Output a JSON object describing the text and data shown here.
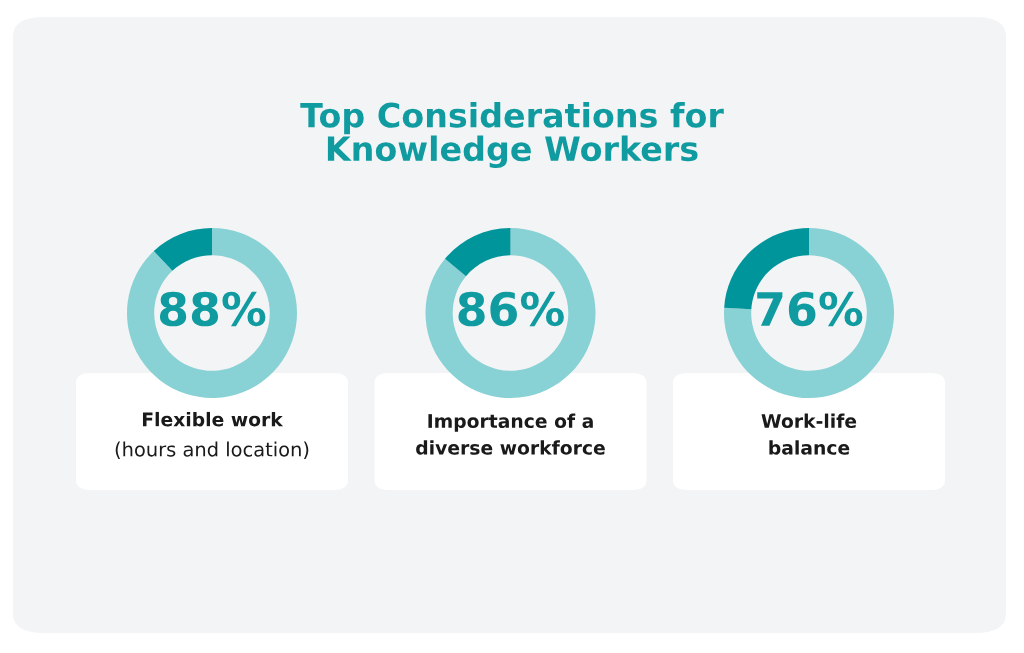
{
  "chart_data": [
    {
      "type": "other",
      "title": "Top Considerations for\nKnowledge Workers"
    },
    {
      "type": "donut",
      "xlabel": "Flexible work",
      "annotations": [
        "(hours and location)"
      ],
      "categories": [
        null,
        null
      ],
      "values": [
        88,
        12
      ],
      "colors": [
        "#88d1d4",
        "#00959a"
      ],
      "value_labels": [
        "88%",
        null
      ]
    },
    {
      "type": "donut",
      "xlabel": "Importance of a\ndiverse workforce",
      "categories": [
        null,
        null
      ],
      "values": [
        86,
        14
      ],
      "colors": [
        "#88d1d4",
        "#00959a"
      ],
      "value_labels": [
        "86%",
        null
      ]
    },
    {
      "type": "donut",
      "xlabel": "Work-life\nbalance",
      "categories": [
        null,
        null
      ],
      "values": [
        76,
        24
      ],
      "colors": [
        "#88d1d4",
        "#00959a"
      ],
      "value_labels": [
        "76%",
        null
      ]
    }
  ]
}
